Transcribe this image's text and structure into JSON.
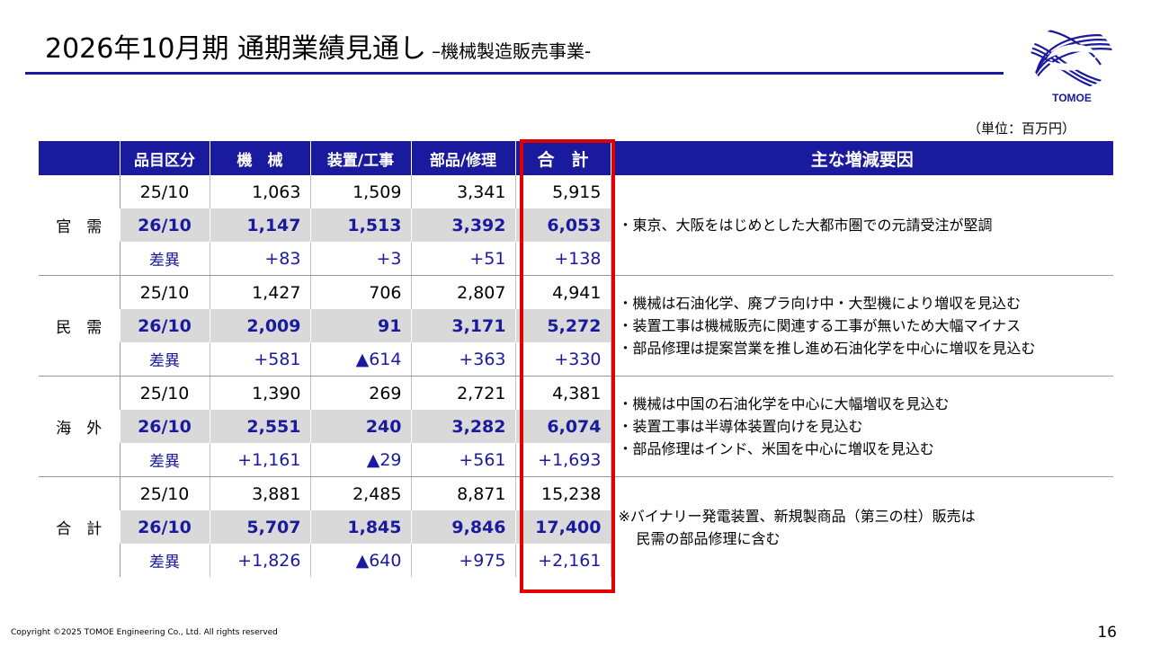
{
  "header": {
    "title": "2026年10月期 通期業績見通し",
    "subtitle": "–機械製造販売事業-",
    "logo_text": "TOMOE",
    "brand_color": "#1a1a9e"
  },
  "unit": "（単位：百万円）",
  "table": {
    "columns": [
      "",
      "品目区分",
      "機　械",
      "装置/工事",
      "部品/修理",
      "合　計",
      "主な増減要因"
    ],
    "groups": [
      {
        "label": "官　需",
        "rows": [
          {
            "period": "25/10",
            "machine": "1,063",
            "equipment": "1,509",
            "parts": "3,341",
            "total": "5,915"
          },
          {
            "period": "26/10",
            "machine": "1,147",
            "equipment": "1,513",
            "parts": "3,392",
            "total": "6,053"
          },
          {
            "period": "差異",
            "machine": "+83",
            "equipment": "+3",
            "parts": "+51",
            "total": "+138"
          }
        ],
        "notes": [
          "・東京、大阪をはじめとした大都市圏での元請受注が堅調"
        ]
      },
      {
        "label": "民　需",
        "rows": [
          {
            "period": "25/10",
            "machine": "1,427",
            "equipment": "706",
            "parts": "2,807",
            "total": "4,941"
          },
          {
            "period": "26/10",
            "machine": "2,009",
            "equipment": "91",
            "parts": "3,171",
            "total": "5,272"
          },
          {
            "period": "差異",
            "machine": "+581",
            "equipment": "▲614",
            "parts": "+363",
            "total": "+330"
          }
        ],
        "notes": [
          "・機械は石油化学、廃プラ向け中・大型機により増収を見込む",
          "・装置工事は機械販売に関連する工事が無いため大幅マイナス",
          "・部品修理は提案営業を推し進め石油化学を中心に増収を見込む"
        ]
      },
      {
        "label": "海　外",
        "rows": [
          {
            "period": "25/10",
            "machine": "1,390",
            "equipment": "269",
            "parts": "2,721",
            "total": "4,381"
          },
          {
            "period": "26/10",
            "machine": "2,551",
            "equipment": "240",
            "parts": "3,282",
            "total": "6,074"
          },
          {
            "period": "差異",
            "machine": "+1,161",
            "equipment": "▲29",
            "parts": "+561",
            "total": "+1,693"
          }
        ],
        "notes": [
          "・機械は中国の石油化学を中心に大幅増収を見込む",
          "・装置工事は半導体装置向けを見込む",
          "・部品修理はインド、米国を中心に増収を見込む"
        ]
      },
      {
        "label": "合　計",
        "rows": [
          {
            "period": "25/10",
            "machine": "3,881",
            "equipment": "2,485",
            "parts": "8,871",
            "total": "15,238"
          },
          {
            "period": "26/10",
            "machine": "5,707",
            "equipment": "1,845",
            "parts": "9,846",
            "total": "17,400"
          },
          {
            "period": "差異",
            "machine": "+1,826",
            "equipment": "▲640",
            "parts": "+975",
            "total": "+2,161"
          }
        ],
        "notes": [
          "※バイナリー発電装置、新規製商品（第三の柱）販売は",
          "民需の部品修理に含む"
        ]
      }
    ]
  },
  "footer": {
    "copyright": "Copyright ©2025 TOMOE Engineering Co., Ltd. All rights reserved",
    "page": "16"
  }
}
